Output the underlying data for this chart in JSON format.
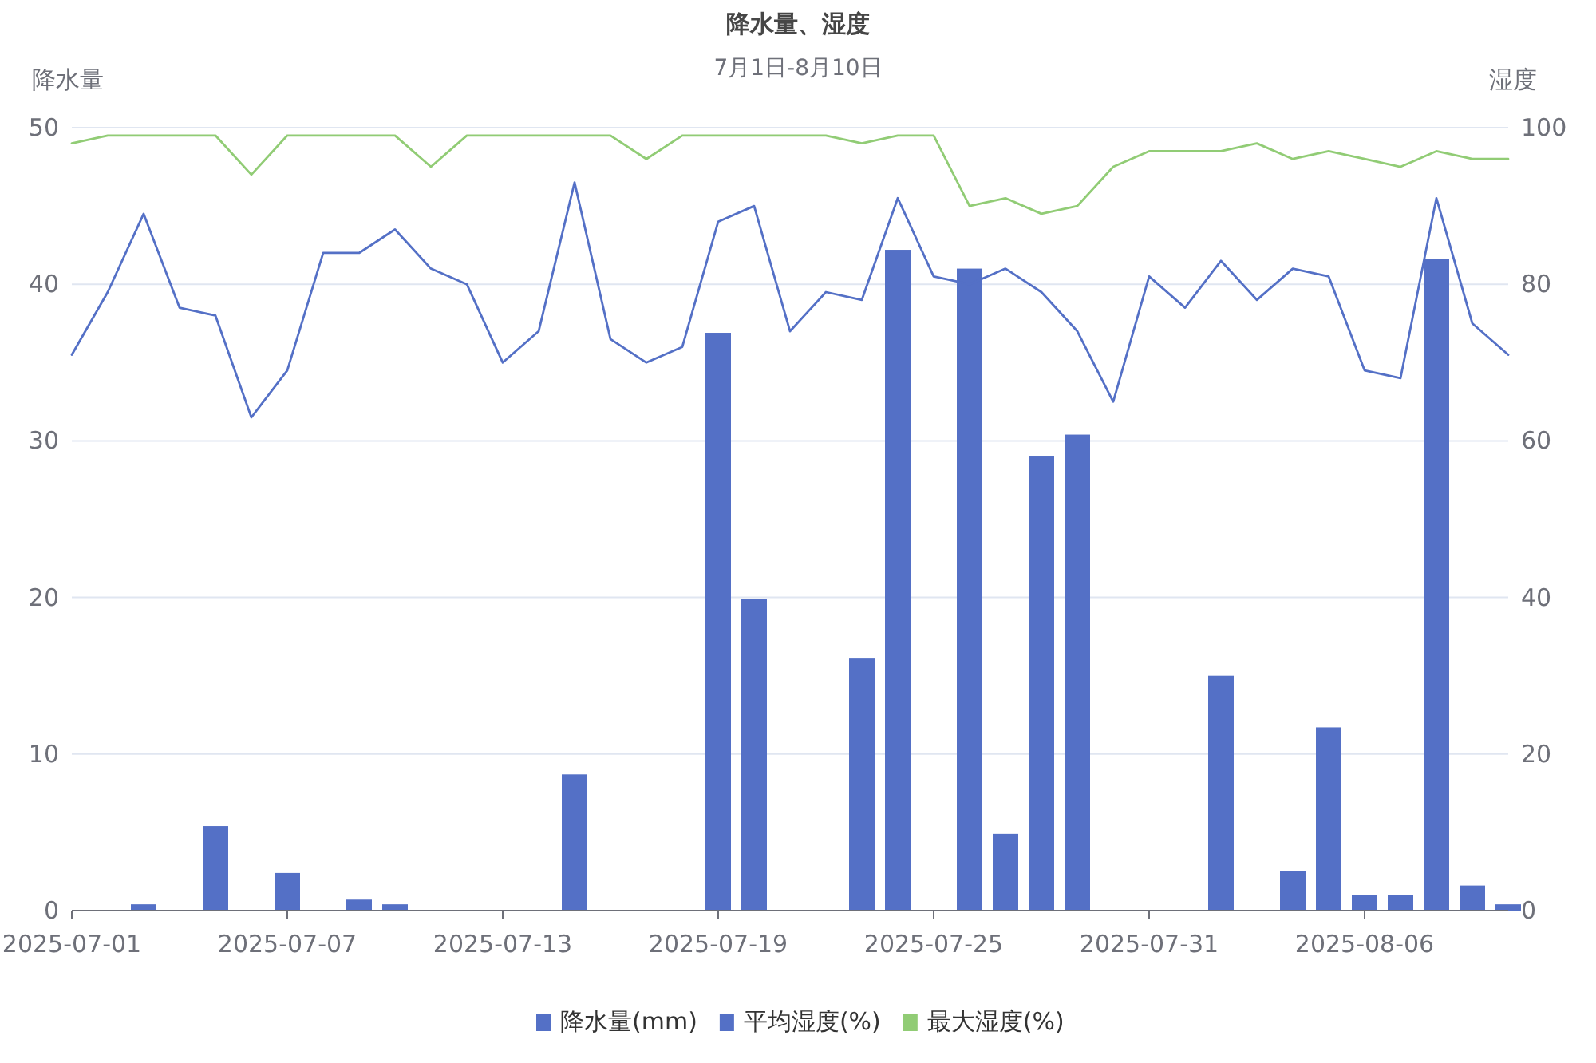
{
  "chart_data": {
    "type": "bar",
    "title": "降水量、湿度",
    "subtitle": "7月1日-8月10日",
    "ylabel": "降水量",
    "y2label": "湿度",
    "x": [
      "2025-07-01",
      "2025-07-02",
      "2025-07-03",
      "2025-07-04",
      "2025-07-05",
      "2025-07-06",
      "2025-07-07",
      "2025-07-08",
      "2025-07-09",
      "2025-07-10",
      "2025-07-11",
      "2025-07-12",
      "2025-07-13",
      "2025-07-14",
      "2025-07-15",
      "2025-07-16",
      "2025-07-17",
      "2025-07-18",
      "2025-07-19",
      "2025-07-20",
      "2025-07-21",
      "2025-07-22",
      "2025-07-23",
      "2025-07-24",
      "2025-07-25",
      "2025-07-26",
      "2025-07-27",
      "2025-07-28",
      "2025-07-29",
      "2025-07-30",
      "2025-07-31",
      "2025-08-01",
      "2025-08-02",
      "2025-08-03",
      "2025-08-04",
      "2025-08-05",
      "2025-08-06",
      "2025-08-07",
      "2025-08-08",
      "2025-08-09",
      "2025-08-10"
    ],
    "series": [
      {
        "name": "降水量(mm)",
        "color": "#5470c6",
        "values": [
          0,
          0,
          0.4,
          0,
          5.4,
          0,
          2.4,
          0,
          0.7,
          0.4,
          0,
          0,
          0,
          0,
          8.7,
          0,
          0,
          0,
          36.9,
          19.9,
          0,
          0,
          16.1,
          42.2,
          0,
          41.0,
          4.9,
          29.0,
          30.4,
          0,
          0,
          0,
          15.0,
          0,
          2.5,
          11.7,
          1.0,
          1.0,
          41.6,
          1.6,
          0.4
        ]
      },
      {
        "name": "平均湿度(%)",
        "type": "line",
        "axis": "y2",
        "color": "#5470c6",
        "values": [
          71,
          79,
          89,
          77,
          76,
          63,
          69,
          84,
          84,
          87,
          82,
          80,
          70,
          74,
          93,
          73,
          70,
          72,
          88,
          90,
          74,
          79,
          78,
          91,
          81,
          80,
          82,
          79,
          74,
          65,
          81,
          77,
          83,
          78,
          82,
          81,
          69,
          68,
          91,
          75,
          71
        ]
      },
      {
        "name": "最大湿度(%)",
        "type": "line",
        "axis": "y2",
        "color": "#91cc75",
        "values": [
          98,
          99,
          99,
          99,
          99,
          94,
          99,
          99,
          99,
          99,
          95,
          99,
          99,
          99,
          99,
          99,
          96,
          99,
          99,
          99,
          99,
          99,
          98,
          99,
          99,
          90,
          91,
          89,
          90,
          95,
          97,
          97,
          97,
          98,
          96,
          97,
          96,
          95,
          97,
          96,
          96
        ]
      }
    ],
    "xlim": [
      "2025-07-01",
      "2025-08-10"
    ],
    "xticks": [
      "2025-07-01",
      "2025-07-07",
      "2025-07-13",
      "2025-07-19",
      "2025-07-25",
      "2025-07-31",
      "2025-08-06"
    ],
    "ylim": [
      0,
      50
    ],
    "yticks": [
      0,
      10,
      20,
      30,
      40,
      50
    ],
    "y2lim": [
      0,
      100
    ],
    "y2ticks": [
      0,
      20,
      40,
      60,
      80,
      100
    ],
    "grid": "y",
    "legend": "bottom",
    "marker": "none",
    "line_style": "solid"
  }
}
